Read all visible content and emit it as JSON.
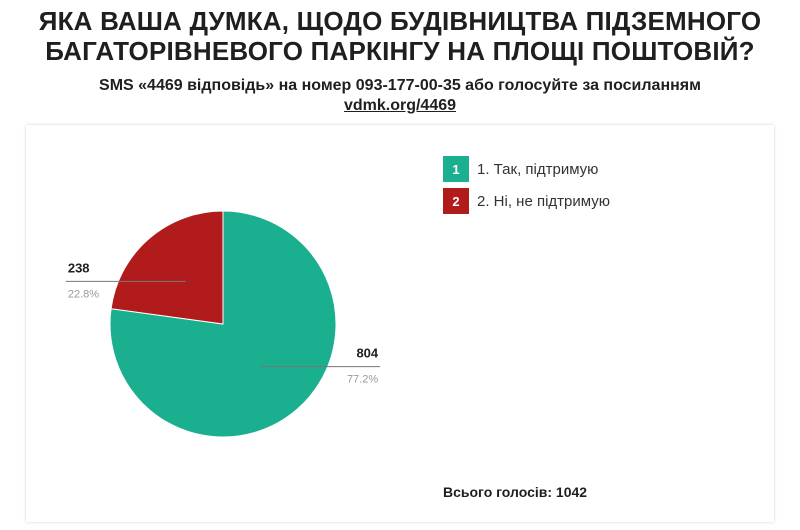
{
  "header": {
    "title_line1": "ЯКА ВАША ДУМКА, ЩОДО БУДІВНИЦТВА ПІДЗЕМНОГО",
    "title_line2": "БАГАТОРІВНЕВОГО ПАРКІНГУ НА ПЛОЩІ ПОШТОВІЙ?",
    "subtitle": "SMS «4469 відповідь» на номер 093-177-00-35 або голосуйте за посиланням",
    "link": "vdmk.org/4469"
  },
  "chart_data": {
    "type": "pie",
    "categories": [
      "1. Так, підтримую",
      "2. Ні, не підтримую"
    ],
    "values": [
      804,
      238
    ],
    "percent_labels": [
      "77.2%",
      "22.8%"
    ],
    "value_labels": [
      "804",
      "238"
    ],
    "colors": [
      "#1aaf8f",
      "#b11b1b"
    ],
    "legend_placement": "right"
  },
  "legend": {
    "items": [
      {
        "badge": "1",
        "label": "1. Так, підтримую",
        "color": "#1aaf8f"
      },
      {
        "badge": "2",
        "label": "2. Ні, не підтримую",
        "color": "#b11b1b"
      }
    ]
  },
  "footer": {
    "total_label": "Всього голосів:",
    "total_value": "1042"
  }
}
